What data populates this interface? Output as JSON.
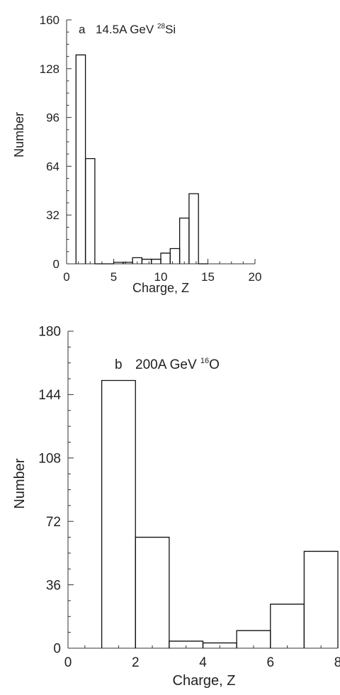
{
  "chart_data": [
    {
      "type": "bar",
      "title": "",
      "annotation": {
        "label": "a",
        "text": "14.5A GeV ",
        "sup": "28",
        "element": "Si"
      },
      "xlabel": "Charge, Z",
      "ylabel": "Number",
      "xlim": [
        0,
        20
      ],
      "ylim": [
        0,
        160
      ],
      "xticks": [
        0,
        5,
        10,
        15,
        20
      ],
      "yticks": [
        0,
        32,
        64,
        96,
        128,
        160
      ],
      "bins": [
        {
          "z": 1,
          "value": 137
        },
        {
          "z": 2,
          "value": 69
        },
        {
          "z": 3,
          "value": 0
        },
        {
          "z": 4,
          "value": 0
        },
        {
          "z": 5,
          "value": 1
        },
        {
          "z": 6,
          "value": 1
        },
        {
          "z": 7,
          "value": 4
        },
        {
          "z": 8,
          "value": 3
        },
        {
          "z": 9,
          "value": 3
        },
        {
          "z": 10,
          "value": 7
        },
        {
          "z": 11,
          "value": 10
        },
        {
          "z": 12,
          "value": 30
        },
        {
          "z": 13,
          "value": 46
        },
        {
          "z": 14,
          "value": 0
        }
      ]
    },
    {
      "type": "bar",
      "title": "",
      "annotation": {
        "label": "b",
        "text": "200A GeV ",
        "sup": "16",
        "element": "O"
      },
      "xlabel": "Charge, Z",
      "ylabel": "Number",
      "xlim": [
        0,
        8
      ],
      "ylim": [
        0,
        180
      ],
      "xticks": [
        0,
        2,
        4,
        6,
        8
      ],
      "yticks": [
        0,
        36,
        72,
        108,
        144,
        180
      ],
      "bins": [
        {
          "z": 1,
          "value": 152
        },
        {
          "z": 2,
          "value": 63
        },
        {
          "z": 3,
          "value": 4
        },
        {
          "z": 4,
          "value": 3
        },
        {
          "z": 5,
          "value": 10
        },
        {
          "z": 6,
          "value": 25
        },
        {
          "z": 7,
          "value": 55
        }
      ]
    }
  ]
}
